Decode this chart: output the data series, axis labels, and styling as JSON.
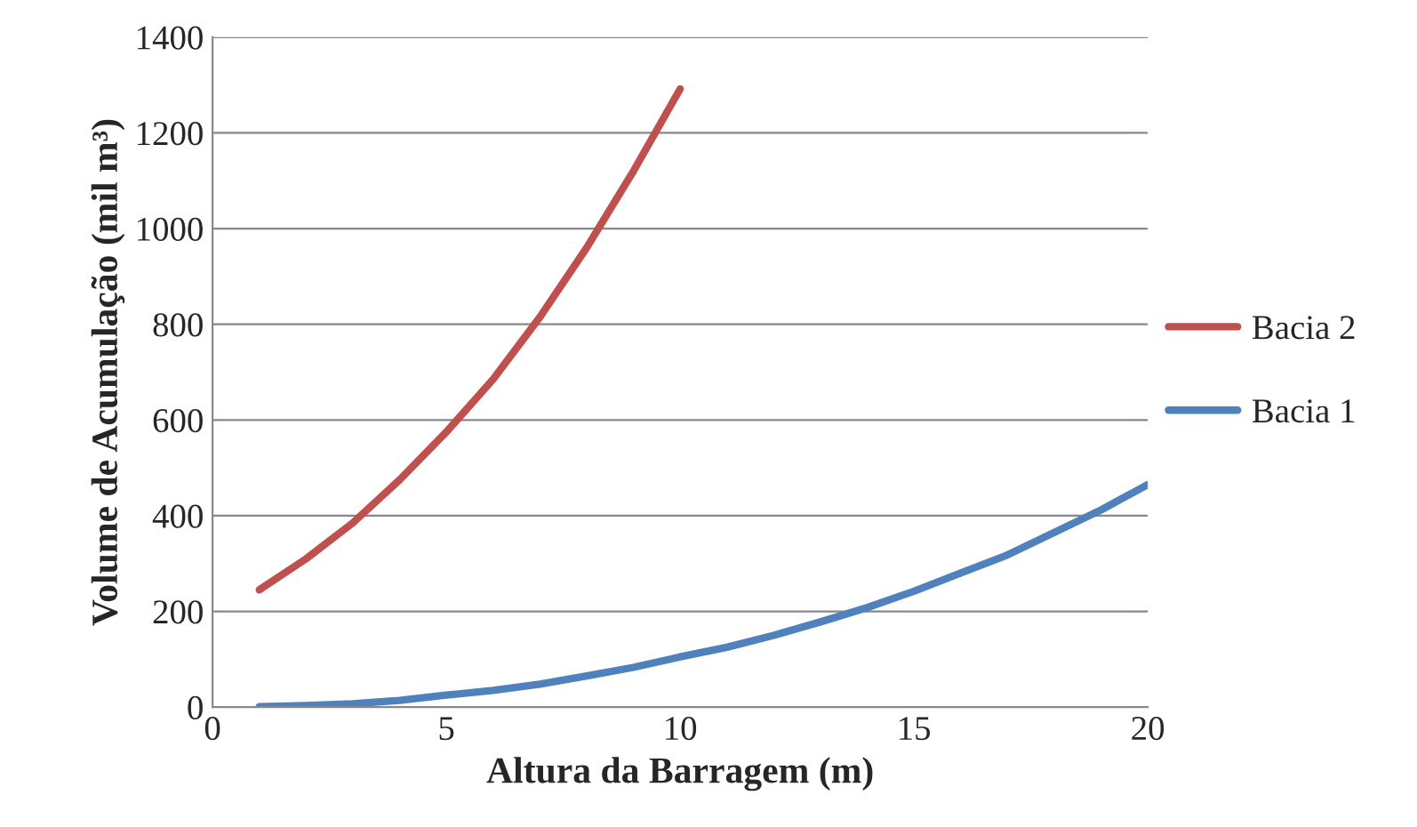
{
  "chart_data": {
    "type": "line",
    "xlabel": "Altura da Barragem (m)",
    "ylabel": "Volume de Acumulação (mil m³)",
    "xlim": [
      0,
      20
    ],
    "xticks": [
      0,
      5,
      10,
      15,
      20
    ],
    "ylim": [
      0,
      1400
    ],
    "yticks": [
      0,
      200,
      400,
      600,
      800,
      1000,
      1200,
      1400
    ],
    "grid": "y",
    "legend": "right",
    "marker": "none",
    "line_style": "solid",
    "series": [
      {
        "name": "Bacia 2",
        "color": "#c0504d",
        "x": [
          1,
          2,
          3,
          4,
          5,
          6,
          7,
          8,
          9,
          10
        ],
        "values": [
          245,
          310,
          385,
          475,
          575,
          685,
          815,
          960,
          1120,
          1292
        ]
      },
      {
        "name": "Bacia 1",
        "color": "#4f81bd",
        "x": [
          1,
          2,
          3,
          4,
          5,
          6,
          7,
          8,
          9,
          10,
          11,
          12,
          13,
          14,
          15,
          16,
          17,
          18,
          19,
          20
        ],
        "values": [
          1,
          3,
          7,
          14,
          25,
          35,
          48,
          65,
          83,
          105,
          125,
          150,
          178,
          208,
          242,
          280,
          318,
          365,
          412,
          465
        ]
      }
    ]
  }
}
